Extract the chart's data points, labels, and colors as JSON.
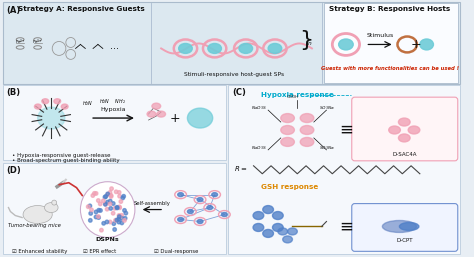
{
  "fig_width": 4.74,
  "fig_height": 2.57,
  "dpi": 100,
  "bg_color": "#e8eef4",
  "panel_A_bg": "#dce8f0",
  "panel_B_bg": "#f5f8fc",
  "panel_C_bg": "#f5f8fc",
  "panel_D_bg": "#f5f8fc",
  "panel_labels": [
    "(A)",
    "(B)",
    "(C)",
    "(D)"
  ],
  "strategy_A_title": "Strategy A: Responsive Guests",
  "strategy_B_title": "Strategy B: Responsive Hosts",
  "sp_label": "Stimuli-responsive host-guest SPs",
  "guests_label": "Guests with more functionalities can be used !",
  "stimulus_label": "Stimulus",
  "hypoxia_label": "Hypoxia",
  "hypoxia_title": "Hypoxia response",
  "gsh_title": "GSH response",
  "b_label1": "Hypoxia-responsive guest-release",
  "b_label2": "Broad-spectrum guest-binding ability",
  "d_label1": "Tumor-bearing mice",
  "d_label2": "DSPNs",
  "d_label3": "Self-assembly",
  "d_check1": "Enhanced stability",
  "d_check2": "EPR effect",
  "d_check3": "Dual-response",
  "d_sac4a": "D-SAC4A",
  "d_cpt": "D-CPT",
  "pink_color": "#f0a0b4",
  "pink_fill": "#f5c0cc",
  "teal_color": "#6eccd8",
  "teal_fill": "#8ddce8",
  "blue_color": "#5080c8",
  "blue_fill": "#7098d8",
  "brown_color": "#c07040",
  "red_label_color": "#cc2200",
  "cyan_label_color": "#00aacc",
  "orange_label_color": "#dd8800",
  "dark_color": "#111111",
  "gray_color": "#888888",
  "line_color": "#444444"
}
